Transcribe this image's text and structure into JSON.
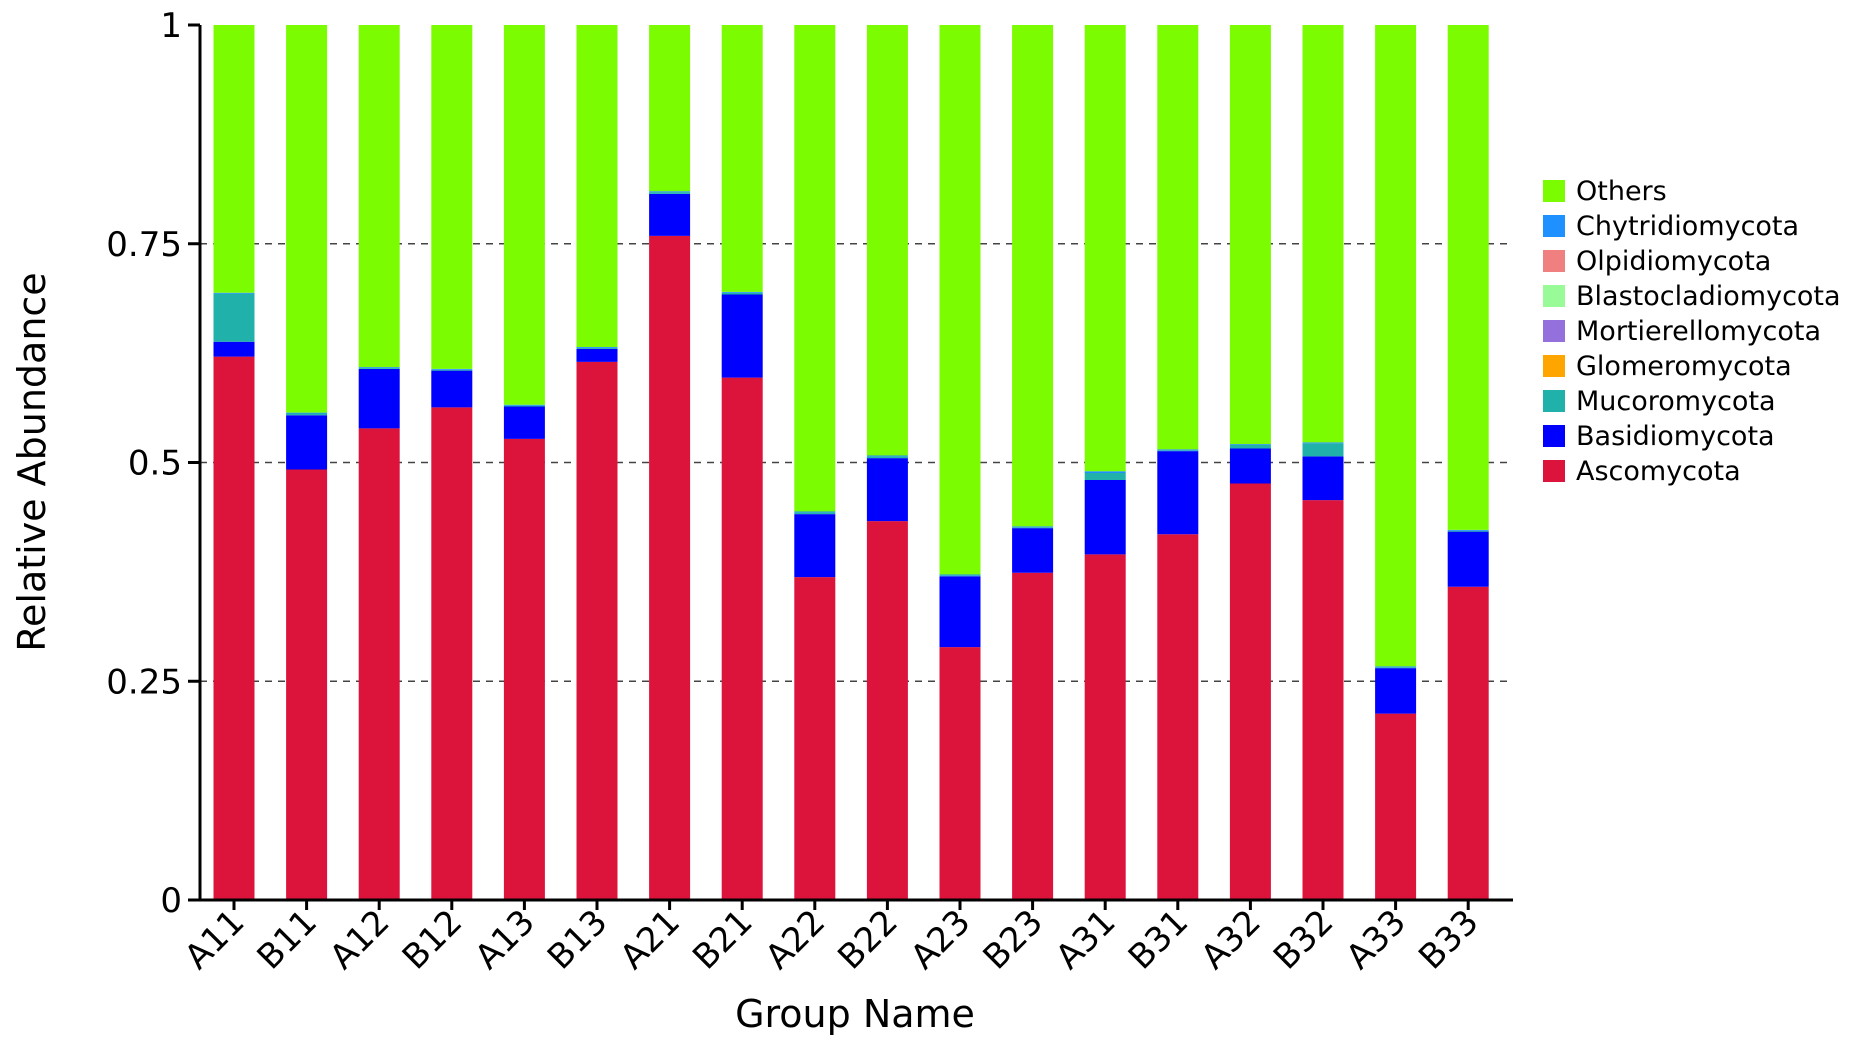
{
  "chart_data": {
    "type": "bar",
    "stacked": true,
    "xlabel": "Group Name",
    "ylabel": "Relative Abundance",
    "ylim": [
      0,
      1
    ],
    "yticks": [
      "0",
      "0.25",
      "0.5",
      "0.75",
      "1"
    ],
    "grid": "dashed horizontal at 0.25, 0.5, 0.75",
    "legend_position": "right",
    "categories": [
      "A11",
      "B11",
      "A12",
      "B12",
      "A13",
      "B13",
      "A21",
      "B21",
      "A22",
      "B22",
      "A23",
      "B23",
      "A31",
      "B31",
      "A32",
      "B32",
      "A33",
      "B33"
    ],
    "series": [
      {
        "name": "Ascomycota",
        "color": "#DC143C",
        "values": [
          0.621,
          0.492,
          0.539,
          0.563,
          0.527,
          0.615,
          0.759,
          0.597,
          0.369,
          0.433,
          0.289,
          0.374,
          0.395,
          0.418,
          0.476,
          0.457,
          0.213,
          0.358
        ]
      },
      {
        "name": "Basidiomycota",
        "color": "#0000FF",
        "values": [
          0.017,
          0.062,
          0.068,
          0.042,
          0.037,
          0.015,
          0.048,
          0.095,
          0.072,
          0.072,
          0.081,
          0.051,
          0.085,
          0.095,
          0.04,
          0.05,
          0.052,
          0.063
        ]
      },
      {
        "name": "Mucoromycota",
        "color": "#20B2AA",
        "values": [
          0.055,
          0.002,
          0.001,
          0.001,
          0.001,
          0.001,
          0.002,
          0.002,
          0.002,
          0.002,
          0.001,
          0.001,
          0.008,
          0.001,
          0.004,
          0.015,
          0.001,
          0.001
        ]
      },
      {
        "name": "Glomeromycota",
        "color": "#FFA500",
        "values": [
          0,
          0,
          0,
          0,
          0,
          0,
          0,
          0,
          0,
          0,
          0,
          0,
          0,
          0,
          0,
          0,
          0,
          0
        ]
      },
      {
        "name": "Mortierellomycota",
        "color": "#9370DB",
        "values": [
          0,
          0,
          0,
          0,
          0,
          0,
          0,
          0,
          0,
          0,
          0,
          0,
          0,
          0,
          0,
          0,
          0,
          0
        ]
      },
      {
        "name": "Blastocladiomycota",
        "color": "#98FB98",
        "values": [
          0,
          0,
          0,
          0,
          0,
          0,
          0,
          0,
          0,
          0,
          0,
          0,
          0,
          0,
          0,
          0,
          0,
          0
        ]
      },
      {
        "name": "Olpidiomycota",
        "color": "#F08080",
        "values": [
          0,
          0,
          0,
          0,
          0,
          0,
          0,
          0,
          0,
          0,
          0,
          0,
          0,
          0,
          0,
          0,
          0,
          0
        ]
      },
      {
        "name": "Chytridiomycota",
        "color": "#1E90FF",
        "values": [
          0.001,
          0.001,
          0.001,
          0.001,
          0.001,
          0.001,
          0.001,
          0.001,
          0.001,
          0.001,
          0.001,
          0.001,
          0.002,
          0.001,
          0.001,
          0.001,
          0.001,
          0.001
        ]
      },
      {
        "name": "Others",
        "color": "#7CFC00",
        "values": [
          0.306,
          0.443,
          0.391,
          0.393,
          0.434,
          0.368,
          0.19,
          0.305,
          0.556,
          0.492,
          0.628,
          0.573,
          0.51,
          0.485,
          0.479,
          0.477,
          0.733,
          0.577
        ]
      }
    ],
    "legend_order": [
      "Others",
      "Chytridiomycota",
      "Olpidiomycota",
      "Blastocladiomycota",
      "Mortierellomycota",
      "Glomeromycota",
      "Mucoromycota",
      "Basidiomycota",
      "Ascomycota"
    ]
  }
}
